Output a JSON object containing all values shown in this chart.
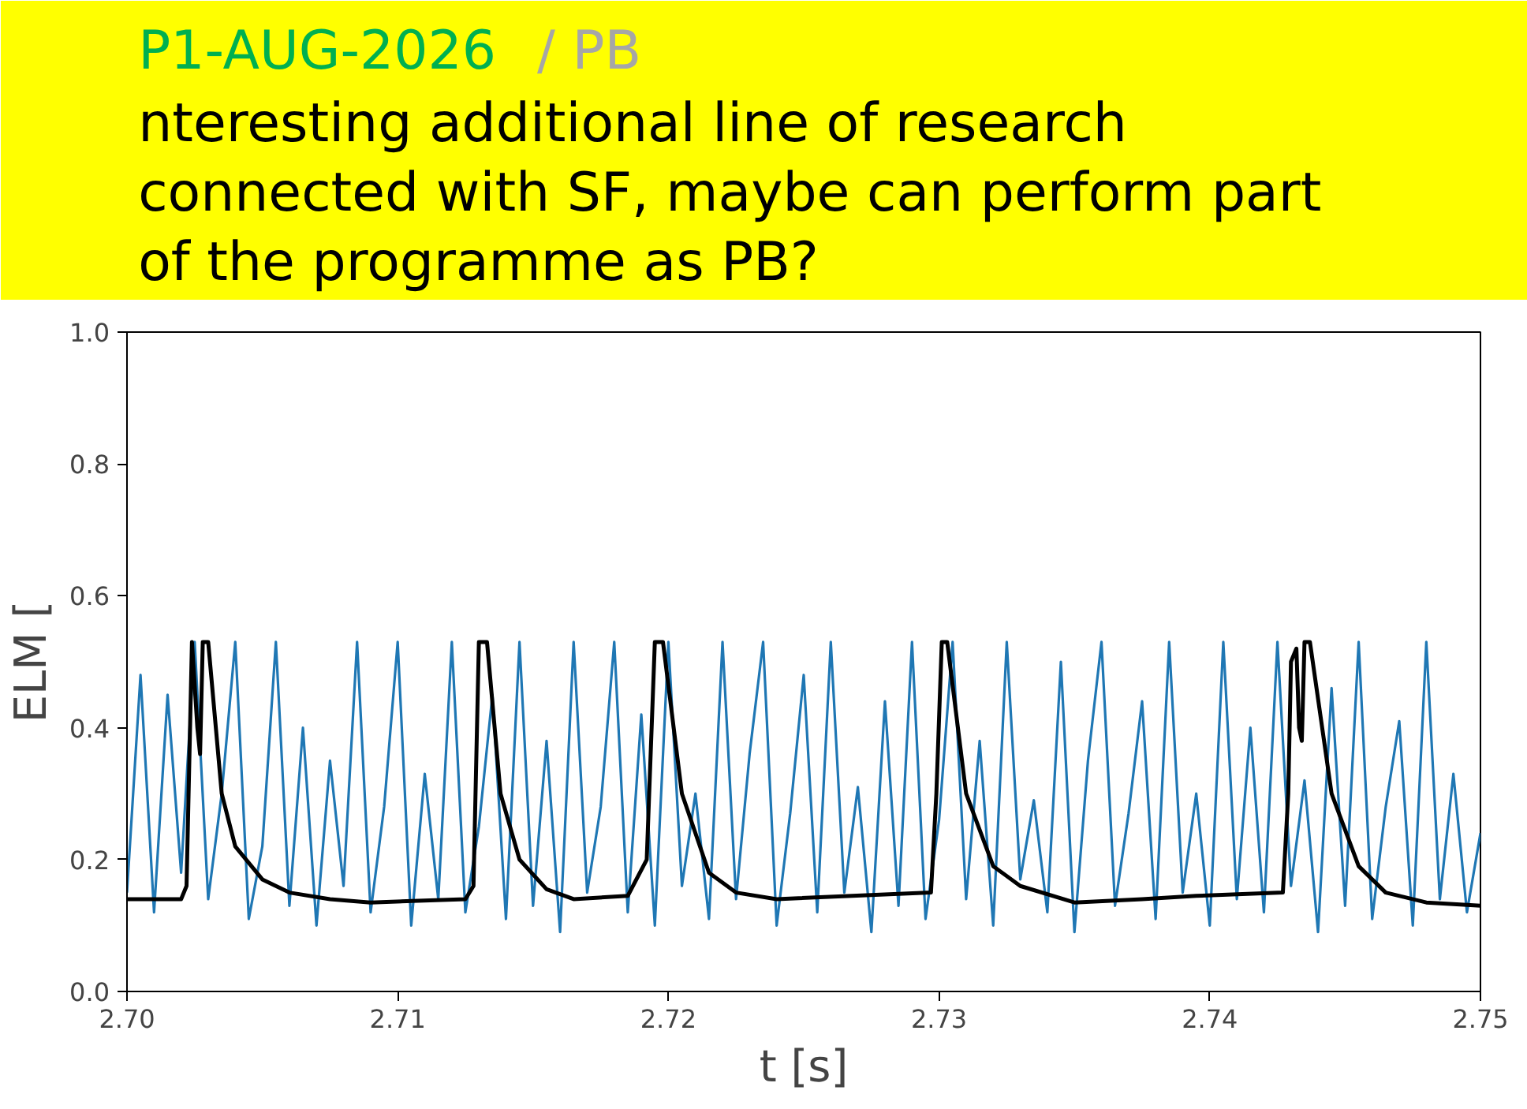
{
  "chart_data": {
    "type": "line",
    "xlabel": "t [s]",
    "ylabel": "ELM [",
    "annotations": [
      "P1-AUG-2026",
      "/ PB",
      "nteresting additional line of research",
      "connected with SF, maybe can perform part",
      "of the programme as PB?"
    ],
    "x": [
      2.7,
      2.7005,
      2.701,
      2.7015,
      2.702,
      2.7025,
      2.703,
      2.7035,
      2.704,
      2.7045,
      2.705,
      2.7055,
      2.706,
      2.7065,
      2.707,
      2.7075,
      2.708,
      2.7085,
      2.709,
      2.7095,
      2.71,
      2.7105,
      2.711,
      2.7115,
      2.712,
      2.7125,
      2.713,
      2.7135,
      2.714,
      2.7145,
      2.715,
      2.7155,
      2.716,
      2.7165,
      2.717,
      2.7175,
      2.718,
      2.7185,
      2.719,
      2.7195,
      2.72,
      2.7205,
      2.721,
      2.7215,
      2.722,
      2.7225,
      2.723,
      2.7235,
      2.724,
      2.7245,
      2.725,
      2.7255,
      2.726,
      2.7265,
      2.727,
      2.7275,
      2.728,
      2.7285,
      2.729,
      2.7295,
      2.73,
      2.7305,
      2.731,
      2.7315,
      2.732,
      2.7325,
      2.733,
      2.7335,
      2.734,
      2.7345,
      2.735,
      2.7355,
      2.736,
      2.7365,
      2.737,
      2.7375,
      2.738,
      2.7385,
      2.739,
      2.7395,
      2.74,
      2.7405,
      2.741,
      2.7415,
      2.742,
      2.7425,
      2.743,
      2.7435,
      2.744,
      2.7445,
      2.745,
      2.7455,
      2.746,
      2.7465,
      2.747,
      2.7475,
      2.748,
      2.7485,
      2.749,
      2.7495,
      2.75
    ],
    "series": [
      {
        "color": "#1f77b4",
        "values": [
          0.15,
          0.48,
          0.12,
          0.45,
          0.18,
          0.53,
          0.14,
          0.3,
          0.53,
          0.11,
          0.22,
          0.53,
          0.13,
          0.4,
          0.1,
          0.35,
          0.16,
          0.53,
          0.12,
          0.28,
          0.53,
          0.1,
          0.33,
          0.14,
          0.53,
          0.12,
          0.25,
          0.45,
          0.11,
          0.53,
          0.13,
          0.38,
          0.09,
          0.53,
          0.15,
          0.28,
          0.53,
          0.12,
          0.42,
          0.1,
          0.53,
          0.16,
          0.3,
          0.11,
          0.53,
          0.14,
          0.36,
          0.53,
          0.1,
          0.27,
          0.48,
          0.12,
          0.53,
          0.15,
          0.31,
          0.09,
          0.44,
          0.13,
          0.53,
          0.11,
          0.26,
          0.53,
          0.14,
          0.38,
          0.1,
          0.53,
          0.17,
          0.29,
          0.12,
          0.5,
          0.09,
          0.35,
          0.53,
          0.13,
          0.27,
          0.44,
          0.11,
          0.53,
          0.15,
          0.3,
          0.1,
          0.53,
          0.14,
          0.4,
          0.12,
          0.53,
          0.16,
          0.32,
          0.09,
          0.46,
          0.13,
          0.53,
          0.11,
          0.28,
          0.41,
          0.1,
          0.53,
          0.14,
          0.33,
          0.12,
          0.24
        ]
      },
      {
        "color": "#000000",
        "x": [
          2.7,
          2.702,
          2.7022,
          2.7024,
          2.7026,
          2.7027,
          2.7028,
          2.703,
          2.7035,
          2.704,
          2.705,
          2.706,
          2.7075,
          2.709,
          2.7125,
          2.7128,
          2.713,
          2.7133,
          2.7138,
          2.7145,
          2.7155,
          2.7165,
          2.7185,
          2.7192,
          2.7195,
          2.7198,
          2.7205,
          2.7215,
          2.7225,
          2.724,
          2.7297,
          2.7299,
          2.7301,
          2.7303,
          2.731,
          2.732,
          2.733,
          2.735,
          2.7375,
          2.7395,
          2.7427,
          2.7429,
          2.743,
          2.7432,
          2.7433,
          2.7434,
          2.7435,
          2.7437,
          2.7445,
          2.7455,
          2.7465,
          2.748,
          2.75
        ],
        "values": [
          0.14,
          0.14,
          0.16,
          0.53,
          0.4,
          0.36,
          0.53,
          0.53,
          0.3,
          0.22,
          0.17,
          0.15,
          0.14,
          0.135,
          0.14,
          0.16,
          0.53,
          0.53,
          0.3,
          0.2,
          0.155,
          0.14,
          0.145,
          0.2,
          0.53,
          0.53,
          0.3,
          0.18,
          0.15,
          0.14,
          0.15,
          0.3,
          0.53,
          0.53,
          0.3,
          0.19,
          0.16,
          0.135,
          0.14,
          0.145,
          0.15,
          0.3,
          0.5,
          0.52,
          0.4,
          0.38,
          0.53,
          0.53,
          0.3,
          0.19,
          0.15,
          0.135,
          0.13
        ]
      }
    ],
    "xlim": [
      2.7,
      2.75
    ],
    "xticks": [
      {
        "value": 2.7,
        "label": "2.70"
      },
      {
        "value": 2.71,
        "label": "2.71"
      },
      {
        "value": 2.72,
        "label": "2.72"
      },
      {
        "value": 2.73,
        "label": "2.73"
      },
      {
        "value": 2.74,
        "label": "2.74"
      },
      {
        "value": 2.75,
        "label": "2.75"
      }
    ],
    "ylim": [
      0,
      1
    ],
    "yticks": [
      {
        "value": 0,
        "label": "0.0"
      },
      {
        "value": 0.2,
        "label": "0.2"
      },
      {
        "value": 0.4,
        "label": "0.4"
      },
      {
        "value": 0.6,
        "label": "0.6"
      },
      {
        "value": 0.8,
        "label": "0.8"
      },
      {
        "value": 1,
        "label": "1.0"
      }
    ],
    "marker": "none"
  }
}
